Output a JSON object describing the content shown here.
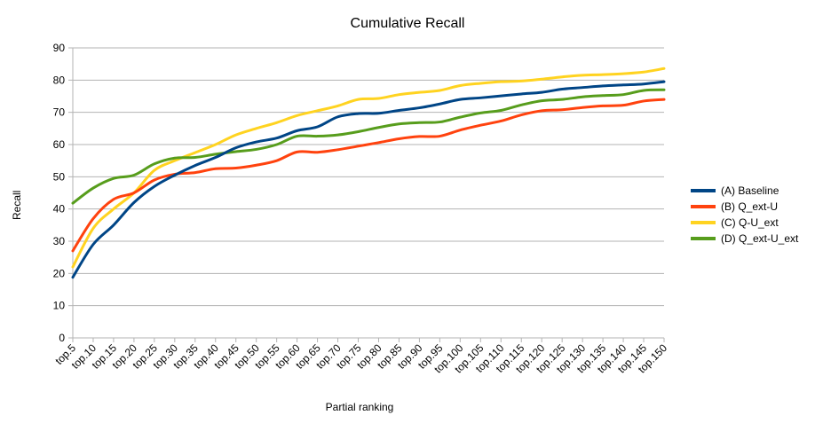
{
  "chart_data": {
    "type": "line",
    "title": "Cumulative Recall",
    "xlabel": "Partial ranking",
    "ylabel": "Recall",
    "ylim": [
      0,
      90
    ],
    "yticks": [
      0,
      10,
      20,
      30,
      40,
      50,
      60,
      70,
      80,
      90
    ],
    "grid": "horizontal",
    "legend_position": "right",
    "categories": [
      "top.5",
      "top.10",
      "top.15",
      "top.20",
      "top.25",
      "top.30",
      "top.35",
      "top.40",
      "top.45",
      "top.50",
      "top.55",
      "top.60",
      "top.65",
      "top.70",
      "top.75",
      "top.80",
      "top.85",
      "top.90",
      "top.95",
      "top.100",
      "top.105",
      "top.110",
      "top.115",
      "top.120",
      "top.125",
      "top.130",
      "top.135",
      "top.140",
      "top.145",
      "top.150"
    ],
    "series": [
      {
        "name": "(A) Baseline",
        "color": "#004586",
        "values": [
          18.8,
          29.0,
          35.0,
          42.0,
          47.0,
          50.5,
          53.5,
          56.0,
          59.0,
          60.8,
          62.0,
          64.3,
          65.5,
          68.6,
          69.6,
          69.7,
          70.6,
          71.4,
          72.6,
          74.0,
          74.5,
          75.1,
          75.7,
          76.2,
          77.2,
          77.7,
          78.2,
          78.5,
          78.8,
          79.5
        ]
      },
      {
        "name": "(B) Q_ext-U",
        "color": "#ff420e",
        "values": [
          27.0,
          37.0,
          43.0,
          45.0,
          49.0,
          50.8,
          51.3,
          52.5,
          52.7,
          53.6,
          55.0,
          57.7,
          57.6,
          58.4,
          59.5,
          60.6,
          61.8,
          62.5,
          62.6,
          64.5,
          66.0,
          67.3,
          69.2,
          70.5,
          70.8,
          71.5,
          72.0,
          72.2,
          73.5,
          74.0
        ]
      },
      {
        "name": "(C) Q-U_ext",
        "color": "#ffd320",
        "values": [
          22.0,
          34.0,
          40.0,
          45.0,
          52.0,
          55.0,
          57.5,
          60.0,
          63.0,
          65.0,
          66.8,
          69.0,
          70.5,
          72.0,
          74.0,
          74.3,
          75.5,
          76.2,
          76.8,
          78.3,
          79.0,
          79.5,
          79.7,
          80.3,
          81.0,
          81.5,
          81.7,
          82.0,
          82.5,
          83.6
        ]
      },
      {
        "name": "(D) Q_ext-U_ext",
        "color": "#579d1c",
        "values": [
          41.8,
          46.5,
          49.5,
          50.5,
          54.0,
          55.8,
          56.0,
          57.0,
          57.8,
          58.5,
          60.0,
          62.6,
          62.6,
          63.0,
          64.0,
          65.3,
          66.4,
          66.8,
          67.0,
          68.5,
          69.8,
          70.6,
          72.3,
          73.6,
          74.0,
          74.8,
          75.2,
          75.5,
          76.8,
          77.0
        ]
      }
    ]
  }
}
